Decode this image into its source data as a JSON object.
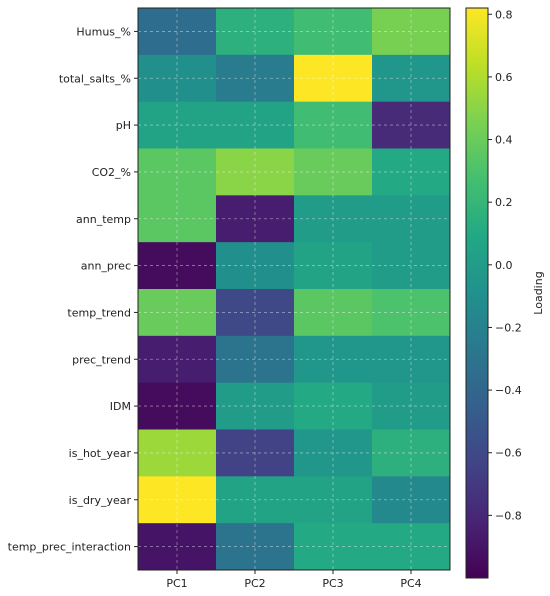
{
  "chart_data": {
    "type": "heatmap",
    "title": "",
    "x_categories": [
      "PC1",
      "PC2",
      "PC3",
      "PC4"
    ],
    "y_categories": [
      "Humus_%",
      "total_salts_%",
      "pH",
      "CO2_%",
      "ann_temp",
      "ann_prec",
      "temp_trend",
      "prec_trend",
      "IDM",
      "is_hot_year",
      "is_dry_year",
      "temp_prec_interaction"
    ],
    "values": [
      [
        -0.35,
        0.15,
        0.25,
        0.45
      ],
      [
        -0.1,
        -0.25,
        0.82,
        -0.05
      ],
      [
        0.05,
        0.05,
        0.25,
        -0.78
      ],
      [
        0.35,
        0.5,
        0.4,
        0.1
      ],
      [
        0.35,
        -0.85,
        0.0,
        0.0
      ],
      [
        -0.95,
        -0.1,
        0.05,
        0.0
      ],
      [
        0.4,
        -0.6,
        0.35,
        0.3
      ],
      [
        -0.85,
        -0.3,
        -0.05,
        -0.05
      ],
      [
        -0.95,
        0.0,
        0.1,
        0.0
      ],
      [
        0.55,
        -0.65,
        -0.05,
        0.15
      ],
      [
        0.82,
        0.05,
        0.05,
        -0.15
      ],
      [
        -0.9,
        -0.3,
        0.1,
        0.1
      ]
    ],
    "colorbar": {
      "label": "Loading",
      "min": -1.0,
      "max": 0.82,
      "ticks": [
        0.8,
        0.6,
        0.4,
        0.2,
        0.0,
        -0.2,
        -0.4,
        -0.6,
        -0.8
      ],
      "tick_labels": [
        "0.8",
        "0.6",
        "0.4",
        "0.2",
        "0.0",
        "−0.2",
        "−0.4",
        "−0.6",
        "−0.8"
      ],
      "colormap": "viridis"
    },
    "grid": true
  }
}
